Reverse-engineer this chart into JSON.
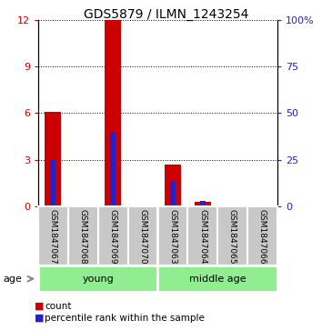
{
  "title": "GDS5879 / ILMN_1243254",
  "samples": [
    "GSM1847067",
    "GSM1847068",
    "GSM1847069",
    "GSM1847070",
    "GSM1847063",
    "GSM1847064",
    "GSM1847065",
    "GSM1847066"
  ],
  "count_values": [
    6.1,
    0,
    12.0,
    0,
    2.7,
    0.3,
    0,
    0
  ],
  "percentile_values": [
    25,
    0,
    40,
    0,
    13,
    3,
    0,
    0
  ],
  "ylim_left": [
    0,
    12
  ],
  "ylim_right": [
    0,
    100
  ],
  "yticks_left": [
    0,
    3,
    6,
    9,
    12
  ],
  "yticks_right": [
    0,
    25,
    50,
    75,
    100
  ],
  "ytick_labels_right": [
    "0",
    "25",
    "50",
    "75",
    "100%"
  ],
  "groups": [
    {
      "label": "young",
      "indices": [
        0,
        1,
        2,
        3
      ]
    },
    {
      "label": "middle age",
      "indices": [
        4,
        5,
        6,
        7
      ]
    }
  ],
  "group_color": "#90EE90",
  "bar_color_red": "#CC0000",
  "bar_color_blue": "#2222CC",
  "sample_box_color": "#C8C8C8",
  "age_label": "age",
  "legend_items": [
    {
      "color": "#CC0000",
      "label": "count"
    },
    {
      "color": "#2222CC",
      "label": "percentile rank within the sample"
    }
  ],
  "red_bar_width": 0.55,
  "blue_bar_width": 0.18
}
